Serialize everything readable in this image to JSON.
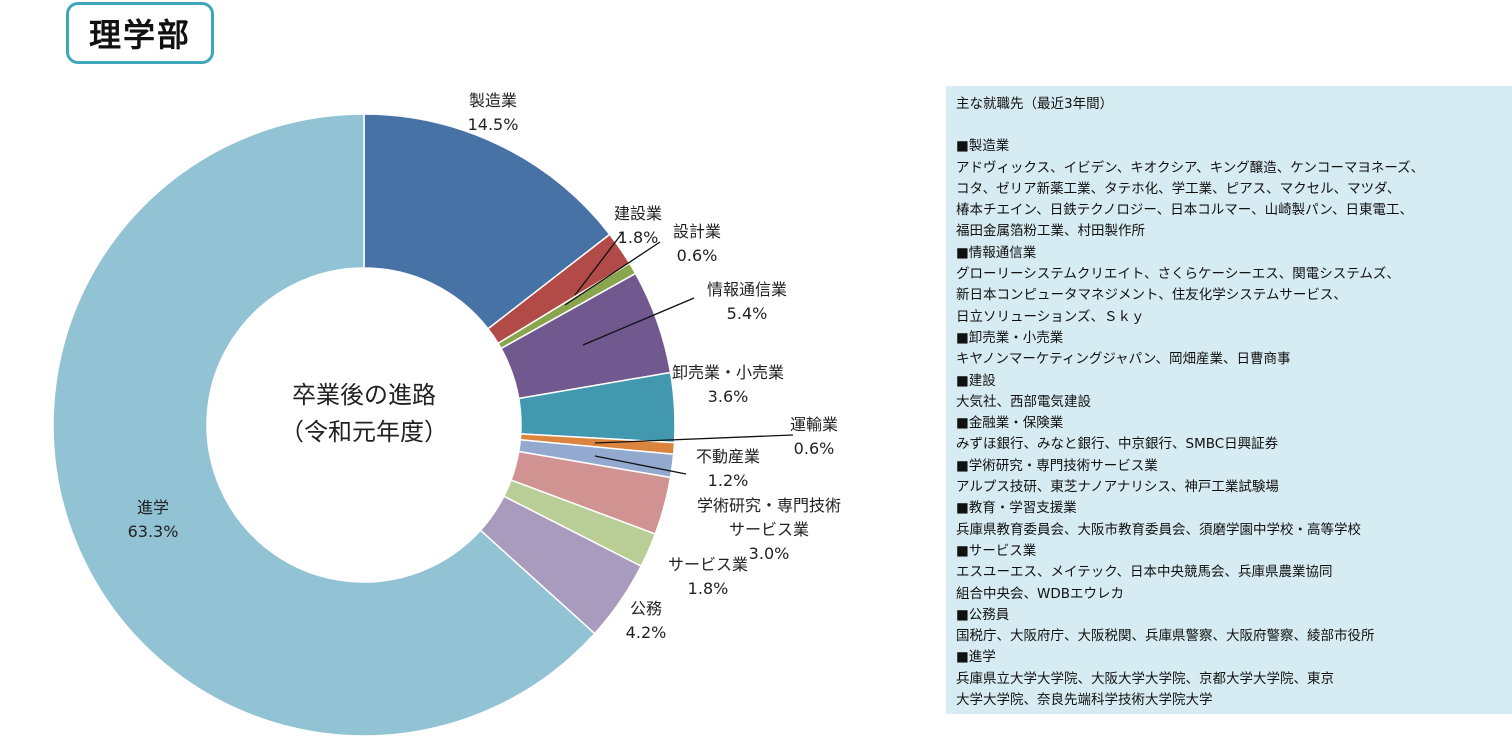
{
  "header": {
    "faculty": "理学部"
  },
  "chart_data": {
    "type": "pie",
    "title": "卒業後の進路（令和元年度）",
    "center_title_lines": [
      "卒業後の進路",
      "（令和元年度）"
    ],
    "slices": [
      {
        "label": "製造業",
        "pct": "14.5%",
        "value": 14.5,
        "color": "#4672a6"
      },
      {
        "label": "建設業",
        "pct": "1.8%",
        "value": 1.8,
        "color": "#b24a47"
      },
      {
        "label": "設計業",
        "pct": "0.6%",
        "value": 0.6,
        "color": "#89a54e"
      },
      {
        "label": "情報通信業",
        "pct": "5.4%",
        "value": 5.4,
        "color": "#71598f"
      },
      {
        "label": "卸売業・小売業",
        "pct": "3.6%",
        "value": 3.6,
        "color": "#4198af"
      },
      {
        "label": "運輸業",
        "pct": "0.6%",
        "value": 0.6,
        "color": "#db843d"
      },
      {
        "label": "不動産業",
        "pct": "1.2%",
        "value": 1.2,
        "color": "#93a9cf"
      },
      {
        "label": "学術研究・専門技術サービス業",
        "label_lines": [
          "学術研究・専門技術",
          "サービス業"
        ],
        "pct": "3.0%",
        "value": 3.0,
        "color": "#d19392"
      },
      {
        "label": "サービス業",
        "pct": "1.8%",
        "value": 1.8,
        "color": "#b9cd96"
      },
      {
        "label": "公務",
        "pct": "4.2%",
        "value": 4.2,
        "color": "#a99bbd"
      },
      {
        "label": "進学",
        "pct": "63.3%",
        "value": 63.3,
        "color": "#92c3d4"
      }
    ]
  },
  "panel": {
    "lines": [
      "主な就職先（最近3年間）",
      "",
      "■製造業",
      "アドヴィックス、イビデン、キオクシア、キング醸造、ケンコーマヨネーズ、",
      "コタ、ゼリア新薬工業、タテホ化、学工業、ピアス、マクセル、マツダ、",
      "椿本チエイン、日鉄テクノロジー、日本コルマー、山崎製パン、日東電工、",
      "福田金属箔粉工業、村田製作所",
      "■情報通信業",
      "グローリーシステムクリエイト、さくらケーシーエス、関電システムズ、",
      "新日本コンピュータマネジメント、住友化学システムサービス、",
      "日立ソリューションズ、Ｓｋｙ",
      "■卸売業・小売業",
      "キヤノンマーケティングジャパン、岡畑産業、日曹商事",
      "■建設",
      "大気社、西部電気建設",
      "■金融業・保険業",
      "みずほ銀行、みなと銀行、中京銀行、SMBC日興証券",
      "■学術研究・専門技術サービス業",
      "アルプス技研、東芝ナノアナリシス、神戸工業試験場",
      "■教育・学習支援業",
      "兵庫県教育委員会、大阪市教育委員会、須磨学園中学校・高等学校",
      "■サービス業",
      "エスユーエス、メイテック、日本中央競馬会、兵庫県農業協同",
      "組合中央会、WDBエウレカ",
      "■公務員",
      "国税庁、大阪府庁、大阪税関、兵庫県警察、大阪府警察、綾部市役所",
      "■進学",
      "兵庫県立大学大学院、大阪大学大学院、京都大学大学院、東京",
      "大学大学院、奈良先端科学技術大学院大学"
    ]
  }
}
